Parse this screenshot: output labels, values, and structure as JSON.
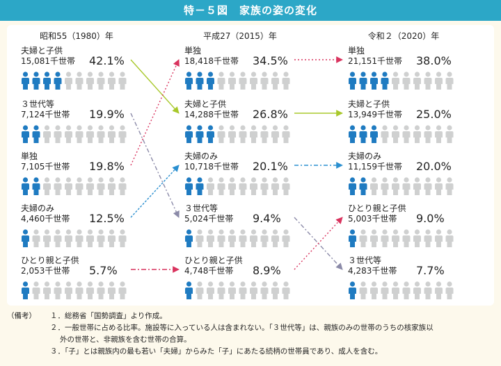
{
  "title": "特－５図　家族の姿の変化",
  "colors": {
    "blue": "#1f7bc1",
    "gray": "#cfd0d0",
    "green": "#a8c82b",
    "pink": "#d9335e",
    "teal_blue": "#2a8fd0",
    "purple": "#8b8aa8"
  },
  "chart_data": {
    "type": "pictograph",
    "columns": [
      {
        "year": "昭和55（1980）年",
        "rows": [
          {
            "name": "夫婦と子供",
            "households": "15,081千世帯",
            "pct": "42.1%",
            "value": 42.1
          },
          {
            "name": "３世代等",
            "households": "7,124千世帯",
            "pct": "19.9%",
            "value": 19.9
          },
          {
            "name": "単独",
            "households": "7,105千世帯",
            "pct": "19.8%",
            "value": 19.8
          },
          {
            "name": "夫婦のみ",
            "households": "4,460千世帯",
            "pct": "12.5%",
            "value": 12.5
          },
          {
            "name": "ひとり親と子供",
            "households": "2,053千世帯",
            "pct": "5.7%",
            "value": 5.7
          }
        ]
      },
      {
        "year": "平成27（2015）年",
        "rows": [
          {
            "name": "単独",
            "households": "18,418千世帯",
            "pct": "34.5%",
            "value": 34.5
          },
          {
            "name": "夫婦と子供",
            "households": "14,288千世帯",
            "pct": "26.8%",
            "value": 26.8
          },
          {
            "name": "夫婦のみ",
            "households": "10,718千世帯",
            "pct": "20.1%",
            "value": 20.1
          },
          {
            "name": "３世代等",
            "households": "5,024千世帯",
            "pct": "9.4%",
            "value": 9.4
          },
          {
            "name": "ひとり親と子供",
            "households": "4,748千世帯",
            "pct": "8.9%",
            "value": 8.9
          }
        ]
      },
      {
        "year": "令和２（2020）年",
        "rows": [
          {
            "name": "単独",
            "households": "21,151千世帯",
            "pct": "38.0%",
            "value": 38.0
          },
          {
            "name": "夫婦と子供",
            "households": "13,949千世帯",
            "pct": "25.0%",
            "value": 25.0
          },
          {
            "name": "夫婦のみ",
            "households": "11,159千世帯",
            "pct": "20.0%",
            "value": 20.0
          },
          {
            "name": "ひとり親と子供",
            "households": "5,003千世帯",
            "pct": "9.0%",
            "value": 9.0
          },
          {
            "name": "３世代等",
            "households": "4,283千世帯",
            "pct": "7.7%",
            "value": 7.7
          }
        ]
      }
    ],
    "icon_unit_pct": 10,
    "icons_per_row": 10
  },
  "notes": {
    "label": "（備考）",
    "items": [
      "１．総務省「国勢調査」より作成。",
      "２．一般世帯に占める比率。施設等に入っている人は含まれない。「３世代等」は、親族のみの世帯のうちの核家族以",
      "外の世帯と、非親族を含む世帯の合算。",
      "３．「子」とは親族内の最も若い「夫婦」からみた「子」にあたる続柄の世帯員であり、成人を含む。"
    ]
  }
}
